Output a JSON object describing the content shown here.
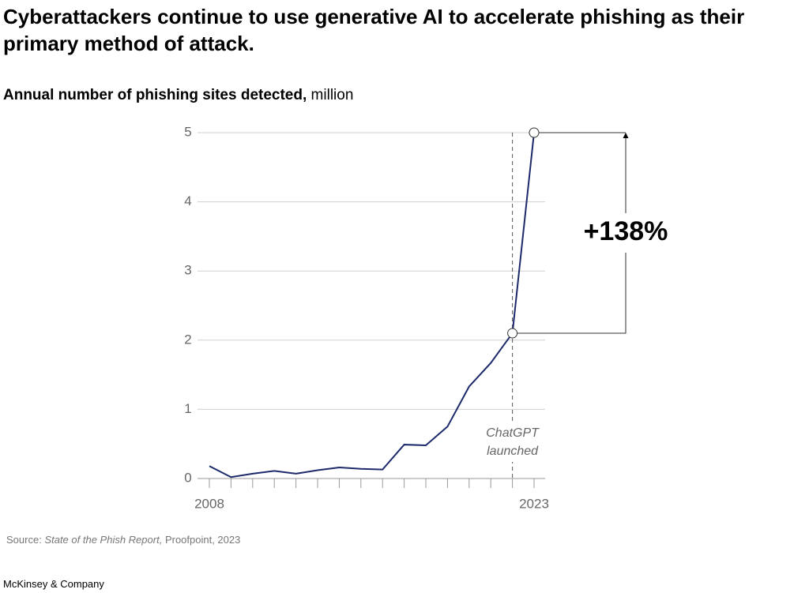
{
  "title": "Cyberattackers continue to use generative AI to accelerate phishing as their primary method of attack.",
  "chart_data": {
    "type": "line",
    "subtitle": "Annual number of phishing sites detected,",
    "unit": "million",
    "categories": [
      "2008",
      null,
      null,
      null,
      null,
      null,
      null,
      null,
      null,
      null,
      null,
      null,
      null,
      null,
      null,
      "2023"
    ],
    "values": [
      0.18,
      0.02,
      0.07,
      0.11,
      0.07,
      0.12,
      0.16,
      0.14,
      0.13,
      0.49,
      0.48,
      0.75,
      1.33,
      1.67,
      2.1,
      5.0
    ],
    "color": "#1c2a6b",
    "ylim": [
      0,
      5
    ],
    "yticks": [
      0,
      1,
      2,
      3,
      4,
      5
    ],
    "grid": true,
    "event_label": [
      "ChatGPT",
      "launched"
    ],
    "change_label": "+138%"
  },
  "source": {
    "label": "Source:",
    "title": "State of the Phish Report,",
    "rest": "Proofpoint, 2023"
  },
  "footer": "McKinsey & Company"
}
